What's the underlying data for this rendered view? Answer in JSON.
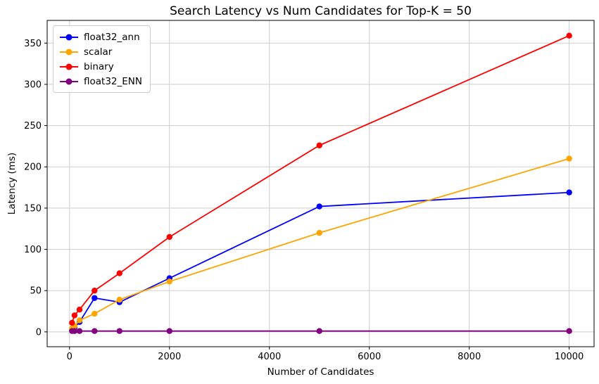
{
  "chart_data": {
    "type": "line",
    "title": "Search Latency vs Num Candidates for Top-K = 50",
    "xlabel": "Number of Candidates",
    "ylabel": "Latency (ms)",
    "x": [
      50,
      100,
      200,
      500,
      1000,
      2000,
      5000,
      10000
    ],
    "series": [
      {
        "name": "float32_ann",
        "color": "#0000ff",
        "values": [
          2,
          5,
          12,
          41,
          36,
          65,
          152,
          169
        ]
      },
      {
        "name": "scalar",
        "color": "#ffa500",
        "values": [
          4,
          7,
          14,
          22,
          39,
          61,
          120,
          210
        ]
      },
      {
        "name": "binary",
        "color": "#ff0000",
        "values": [
          11,
          20,
          27,
          50,
          71,
          115,
          226,
          359
        ]
      },
      {
        "name": "float32_ENN",
        "color": "#800080",
        "values": [
          1,
          1,
          1,
          1,
          1,
          1,
          1,
          1
        ]
      }
    ],
    "xticks": [
      0,
      2000,
      4000,
      6000,
      8000,
      10000
    ],
    "yticks": [
      0,
      50,
      100,
      150,
      200,
      250,
      300,
      350
    ],
    "xlim": [
      -448,
      10498
    ],
    "ylim": [
      -18,
      377.5
    ],
    "grid": true,
    "legend_position": "upper left",
    "grid_color": "#cdcdcd",
    "spine_color": "#000000"
  }
}
